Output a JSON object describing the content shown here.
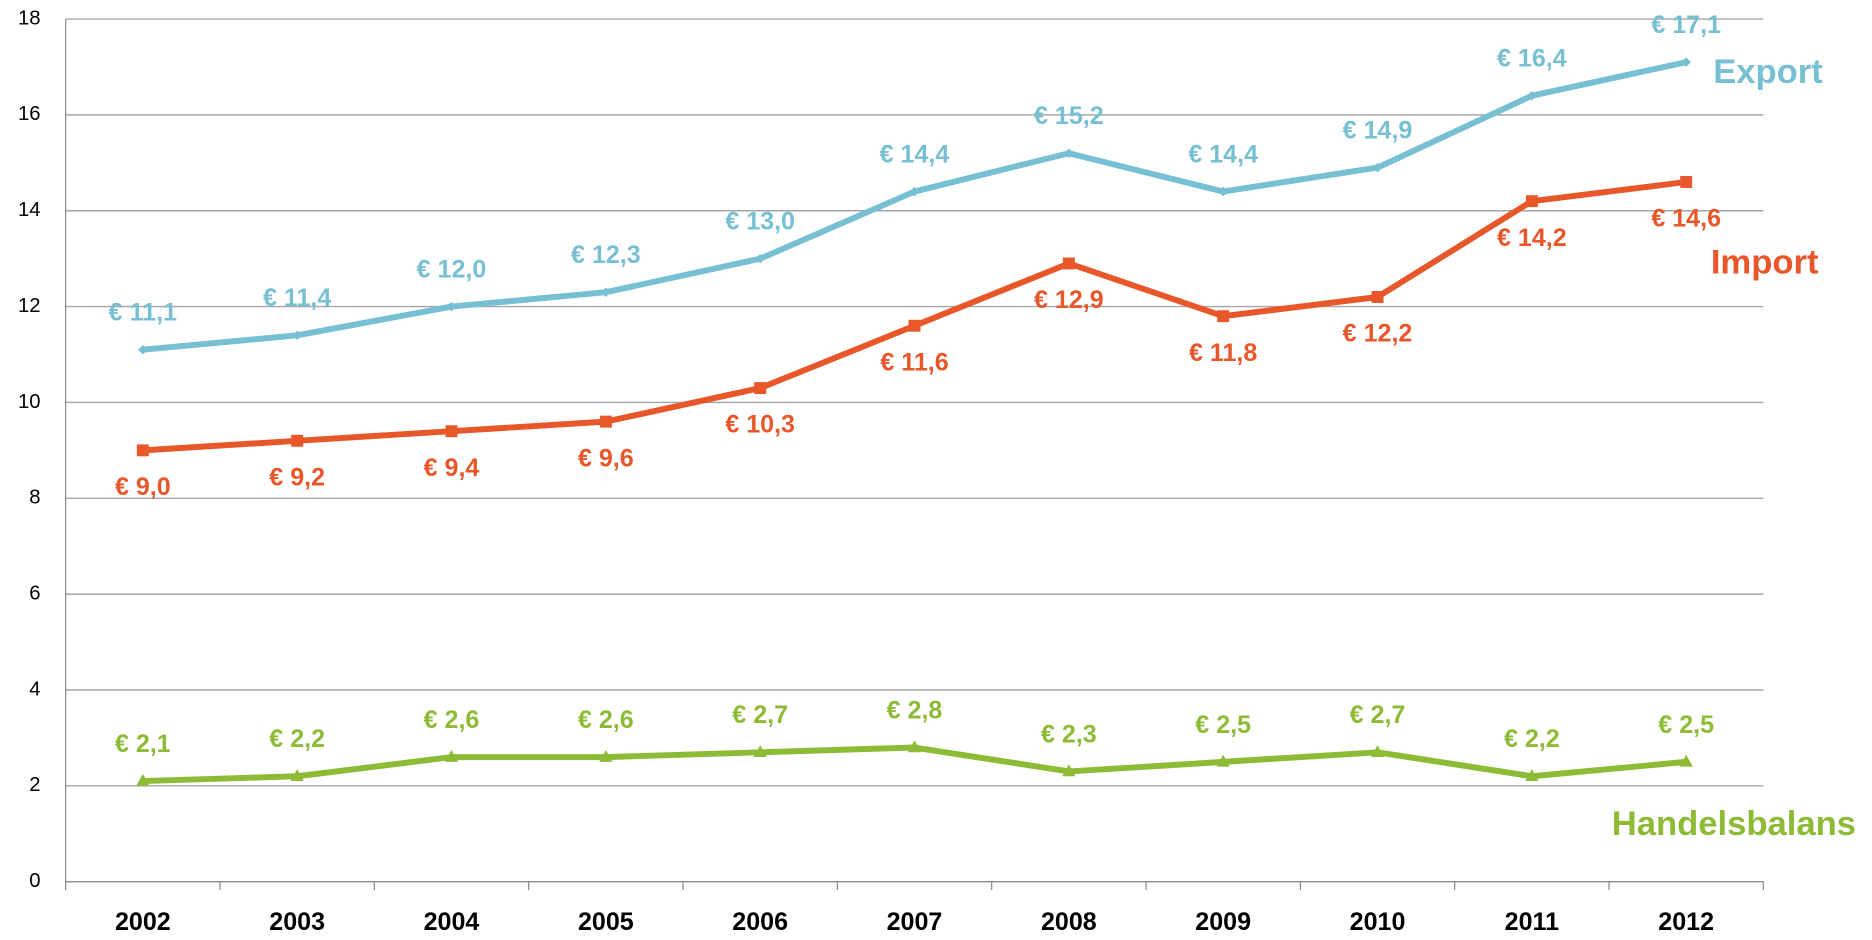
{
  "chart_data": {
    "type": "line",
    "categories": [
      "2002",
      "2003",
      "2004",
      "2005",
      "2006",
      "2007",
      "2008",
      "2009",
      "2010",
      "2011",
      "2012"
    ],
    "series": [
      {
        "name": "Export",
        "color": "#77bfd3",
        "values": [
          11.1,
          11.4,
          12.0,
          12.3,
          13.0,
          14.4,
          15.2,
          14.4,
          14.9,
          16.4,
          17.1
        ],
        "value_labels": [
          "€ 11,1",
          "€ 11,4",
          "€ 12,0",
          "€ 12,3",
          "€ 13,0",
          "€ 14,4",
          "€ 15,2",
          "€ 14,4",
          "€ 14,9",
          "€ 16,4",
          "€ 17,1"
        ]
      },
      {
        "name": "Import",
        "color": "#e8572a",
        "values": [
          9.0,
          9.2,
          9.4,
          9.6,
          10.3,
          11.6,
          12.9,
          11.8,
          12.2,
          14.2,
          14.6
        ],
        "value_labels": [
          "€ 9,0",
          "€ 9,2",
          "€ 9,4",
          "€ 9,6",
          "€ 10,3",
          "€ 11,6",
          "€ 12,9",
          "€ 11,8",
          "€ 12,2",
          "€ 14,2",
          "€ 14,6"
        ]
      },
      {
        "name": "Handelsbalans",
        "color": "#8dbb36",
        "values": [
          2.1,
          2.2,
          2.6,
          2.6,
          2.7,
          2.8,
          2.3,
          2.5,
          2.7,
          2.2,
          2.5
        ],
        "value_labels": [
          "€ 2,1",
          "€ 2,2",
          "€ 2,6",
          "€ 2,6",
          "€ 2,7",
          "€ 2,8",
          "€ 2,3",
          "€ 2,5",
          "€ 2,7",
          "€ 2,2",
          "€ 2,5"
        ]
      }
    ],
    "ylim": [
      0,
      18
    ],
    "yticks": [
      0,
      2,
      4,
      6,
      8,
      10,
      12,
      14,
      16,
      18
    ],
    "grid": true
  }
}
